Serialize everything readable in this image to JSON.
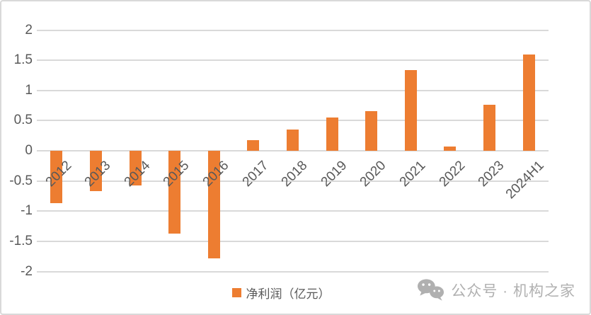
{
  "chart_data": {
    "type": "bar",
    "title": "",
    "categories": [
      "2012",
      "2013",
      "2014",
      "2015",
      "2016",
      "2017",
      "2018",
      "2019",
      "2020",
      "2021",
      "2022",
      "2023",
      "2024H1"
    ],
    "values": [
      -0.87,
      -0.67,
      -0.58,
      -1.37,
      -1.78,
      0.18,
      0.35,
      0.55,
      0.66,
      1.34,
      0.07,
      0.76,
      1.59
    ],
    "legend_label": "净利润（亿元）",
    "xlabel": "",
    "ylabel": "",
    "ylim": [
      -2,
      2
    ],
    "yticks": [
      2,
      1.5,
      1,
      0.5,
      0,
      -0.5,
      -1,
      -1.5,
      -2
    ],
    "grid": true,
    "legend_position": "bottom-center",
    "colors": {
      "bar": "#ED7D31",
      "gridline": "#D9D9D9",
      "axis_labels": "#595959",
      "frame_border": "#D9D9D9"
    }
  },
  "watermark": {
    "icon": "wechat-icon",
    "text": "公众号 · 机构之家",
    "color": "#B0B0B0"
  }
}
